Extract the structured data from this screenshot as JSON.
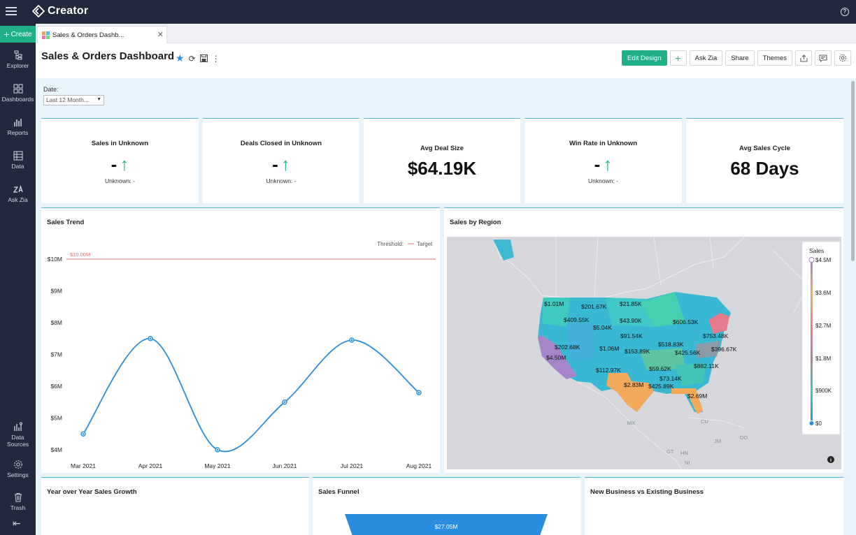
{
  "app": {
    "name": "Creator",
    "help": "?"
  },
  "sidebar": {
    "create_label": "Create",
    "items": [
      {
        "label": "Explorer",
        "icon": "explorer-icon"
      },
      {
        "label": "Dashboards",
        "icon": "dashboards-icon"
      },
      {
        "label": "Reports",
        "icon": "reports-icon"
      },
      {
        "label": "Data",
        "icon": "data-icon"
      },
      {
        "label": "Ask Zia",
        "icon": "ask-zia-icon"
      }
    ],
    "bottom_items": [
      {
        "label_line1": "Data",
        "label_line2": "Sources",
        "icon": "data-sources-icon"
      },
      {
        "label": "Settings",
        "icon": "settings-icon"
      },
      {
        "label": "Trash",
        "icon": "trash-icon"
      }
    ]
  },
  "tab": {
    "label": "Sales & Orders Dashb..."
  },
  "header": {
    "title": "Sales & Orders Dashboard",
    "buttons": {
      "edit_design": "Edit Design",
      "add": "+",
      "ask_zia": "Ask Zia",
      "share": "Share",
      "themes": "Themes"
    }
  },
  "filter": {
    "label": "Date:",
    "value": "Last 12 Month..."
  },
  "kpis": [
    {
      "title": "Sales in Unknown",
      "value": "-",
      "trend": "up",
      "sub": "Unknown: -"
    },
    {
      "title": "Deals Closed in Unknown",
      "value": "-",
      "trend": "up",
      "sub": "Unknown: -"
    },
    {
      "title": "Avg Deal Size",
      "value": "$64.19K"
    },
    {
      "title": "Win Rate in Unknown",
      "value": "-",
      "trend": "up",
      "sub": "Unknown: -"
    },
    {
      "title": "Avg Sales Cycle",
      "value": "68 Days"
    }
  ],
  "sales_trend": {
    "title": "Sales Trend",
    "legend_label": "Threshold:",
    "legend_item": "Target",
    "threshold_label": "$10.00M",
    "line_color": "#2a8de0",
    "threshold_color": "#e57373"
  },
  "chart_data": {
    "type": "line",
    "title": "Sales Trend",
    "categories": [
      "Mar 2021",
      "Apr 2021",
      "May 2021",
      "Jun 2021",
      "Jul 2021",
      "Aug 2021"
    ],
    "values": [
      4.5,
      7.5,
      4.0,
      5.5,
      7.45,
      5.8
    ],
    "y_ticks": [
      "$4M",
      "$5M",
      "$6M",
      "$7M",
      "$8M",
      "$9M",
      "$10M"
    ],
    "ylim": [
      4,
      10
    ],
    "threshold": 10,
    "units": "millions USD"
  },
  "region_map": {
    "title": "Sales by Region",
    "legend_title": "Sales",
    "legend_ticks": [
      "$4.5M",
      "$3.6M",
      "$2.7M",
      "$1.8M",
      "$900K",
      "$0"
    ],
    "country_labels": [
      "MX",
      "CU",
      "JM",
      "DO",
      "GT",
      "HN",
      "NI"
    ],
    "state_labels": [
      "$1.01M",
      "$201.67K",
      "$21.85K",
      "$409.55K",
      "$5.04K",
      "$43.90K",
      "$606.53K",
      "$91.54K",
      "$202.68K",
      "$1.06M",
      "$153.89K",
      "$518.83K",
      "$753.48K",
      "$396.67K",
      "$4.50M",
      "$425.56K",
      "$882.11K",
      "$112.97K",
      "$59.62K",
      "$73.14K",
      "$2.83M",
      "$425.89K",
      "$2.69M"
    ]
  },
  "bottom_charts": {
    "yoy_title": "Year over Year Sales Growth",
    "funnel_title": "Sales Funnel",
    "funnel_value": "$27.05M",
    "new_vs_existing_title": "New Business vs Existing Business"
  }
}
